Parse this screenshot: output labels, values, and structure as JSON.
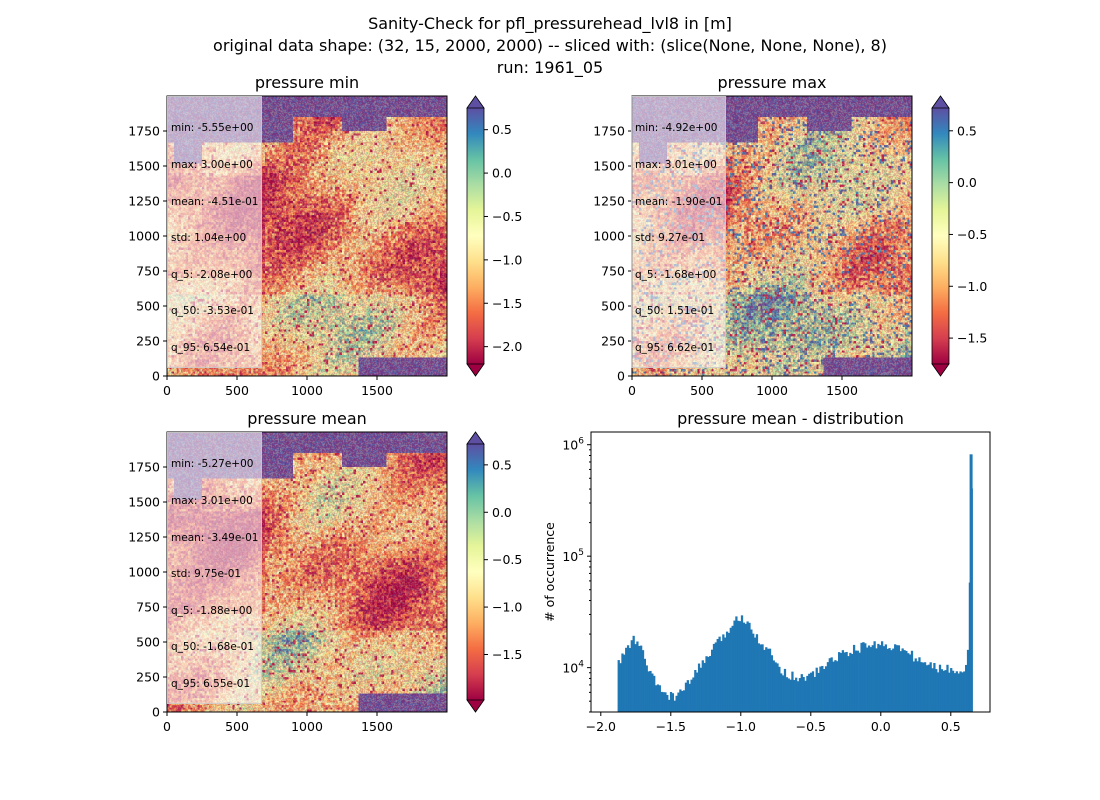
{
  "figure": {
    "title_lines": [
      "Sanity-Check for pfl_pressurehead_lvl8 in [m]",
      "original data shape: (32, 15, 2000, 2000) -- sliced with: (slice(None, None, None), 8)",
      "run: 1961_05"
    ]
  },
  "chart_data": [
    {
      "type": "heatmap",
      "title": "pressure min",
      "xticks": [
        0,
        500,
        1000,
        1500
      ],
      "yticks": [
        0,
        250,
        500,
        750,
        1000,
        1250,
        1500,
        1750
      ],
      "xlim": [
        0,
        2000
      ],
      "ylim": [
        0,
        2000
      ],
      "colorbar": {
        "vmin": -2.2,
        "vmax": 0.75,
        "ticks": [
          -2.0,
          -1.5,
          -1.0,
          -0.5,
          0.0,
          0.5
        ],
        "ticklabels": [
          "−2.0",
          "−1.5",
          "−1.0",
          "−0.5",
          "0.0",
          "0.5"
        ],
        "cmap": "Spectral",
        "extend": "both"
      },
      "stats": [
        "min: -5.55e+00",
        "max: 3.00e+00",
        "mean: -4.51e-01",
        "std: 1.04e+00",
        "q_5: -2.08e+00",
        "q_50: -3.53e-01",
        "q_95: 6.54e-01"
      ]
    },
    {
      "type": "heatmap",
      "title": "pressure max",
      "xticks": [
        0,
        500,
        1000,
        1500
      ],
      "yticks": [
        0,
        250,
        500,
        750,
        1000,
        1250,
        1500,
        1750
      ],
      "xlim": [
        0,
        2000
      ],
      "ylim": [
        0,
        2000
      ],
      "colorbar": {
        "vmin": -1.75,
        "vmax": 0.72,
        "ticks": [
          -1.5,
          -1.0,
          -0.5,
          0.0,
          0.5
        ],
        "ticklabels": [
          "−1.5",
          "−1.0",
          "−0.5",
          "0.0",
          "0.5"
        ],
        "cmap": "Spectral",
        "extend": "both"
      },
      "stats": [
        "min: -4.92e+00",
        "max: 3.01e+00",
        "mean: -1.90e-01",
        "std: 9.27e-01",
        "q_5: -1.68e+00",
        "q_50: 1.51e-01",
        "q_95: 6.62e-01"
      ]
    },
    {
      "type": "heatmap",
      "title": "pressure mean",
      "xticks": [
        0,
        500,
        1000,
        1500
      ],
      "yticks": [
        0,
        250,
        500,
        750,
        1000,
        1250,
        1500,
        1750
      ],
      "xlim": [
        0,
        2000
      ],
      "ylim": [
        0,
        2000
      ],
      "colorbar": {
        "vmin": -1.98,
        "vmax": 0.72,
        "ticks": [
          -1.5,
          -1.0,
          -0.5,
          0.0,
          0.5
        ],
        "ticklabels": [
          "−1.5",
          "−1.0",
          "−0.5",
          "0.0",
          "0.5"
        ],
        "cmap": "Spectral",
        "extend": "both"
      },
      "stats": [
        "min: -5.27e+00",
        "max: 3.01e+00",
        "mean: -3.49e-01",
        "std: 9.75e-01",
        "q_5: -1.88e+00",
        "q_50: -1.68e-01",
        "q_95: 6.55e-01"
      ]
    },
    {
      "type": "bar",
      "subtype": "histogram",
      "title": "pressure mean - distribution",
      "xlabel": "",
      "ylabel": "# of occurrence",
      "yscale": "log",
      "xlim": [
        -2.07,
        0.78
      ],
      "ylim": [
        4000,
        1300000
      ],
      "xticks": [
        -2.0,
        -1.5,
        -1.0,
        -0.5,
        0.0,
        0.5
      ],
      "xticklabels": [
        "−2.0",
        "−1.5",
        "−1.0",
        "−0.5",
        "0.0",
        "0.5"
      ],
      "yticks": [
        10000,
        100000,
        1000000
      ],
      "yticklabels": [
        [
          "10",
          "4"
        ],
        [
          "10",
          "5"
        ],
        [
          "10",
          "6"
        ]
      ],
      "bar_color": "#1f77b4",
      "bin_range": [
        -1.88,
        0.655
      ],
      "peak": {
        "x": 0.645,
        "y": 820000
      },
      "profile": [
        [
          -1.88,
          10500
        ],
        [
          -1.84,
          13000
        ],
        [
          -1.8,
          16000
        ],
        [
          -1.76,
          18000
        ],
        [
          -1.72,
          15500
        ],
        [
          -1.68,
          11500
        ],
        [
          -1.64,
          8500
        ],
        [
          -1.6,
          7000
        ],
        [
          -1.55,
          6000
        ],
        [
          -1.5,
          5500
        ],
        [
          -1.45,
          5700
        ],
        [
          -1.4,
          6500
        ],
        [
          -1.35,
          8000
        ],
        [
          -1.3,
          10000
        ],
        [
          -1.25,
          12000
        ],
        [
          -1.2,
          14500
        ],
        [
          -1.15,
          17500
        ],
        [
          -1.1,
          21000
        ],
        [
          -1.05,
          25500
        ],
        [
          -1.0,
          29000
        ],
        [
          -0.96,
          27000
        ],
        [
          -0.92,
          23000
        ],
        [
          -0.88,
          18500
        ],
        [
          -0.84,
          16000
        ],
        [
          -0.8,
          14000
        ],
        [
          -0.76,
          11500
        ],
        [
          -0.72,
          10000
        ],
        [
          -0.68,
          9000
        ],
        [
          -0.62,
          8300
        ],
        [
          -0.56,
          8200
        ],
        [
          -0.5,
          8500
        ],
        [
          -0.44,
          9500
        ],
        [
          -0.38,
          11000
        ],
        [
          -0.32,
          12500
        ],
        [
          -0.26,
          13500
        ],
        [
          -0.2,
          14500
        ],
        [
          -0.14,
          15200
        ],
        [
          -0.08,
          16000
        ],
        [
          -0.02,
          16300
        ],
        [
          0.04,
          16000
        ],
        [
          0.1,
          15500
        ],
        [
          0.16,
          14200
        ],
        [
          0.22,
          13000
        ],
        [
          0.28,
          11500
        ],
        [
          0.34,
          10500
        ],
        [
          0.4,
          10000
        ],
        [
          0.46,
          9800
        ],
        [
          0.52,
          9600
        ],
        [
          0.58,
          9800
        ],
        [
          0.62,
          11000
        ],
        [
          0.635,
          60000
        ],
        [
          0.645,
          820000
        ],
        [
          0.652,
          200000
        ]
      ]
    }
  ]
}
